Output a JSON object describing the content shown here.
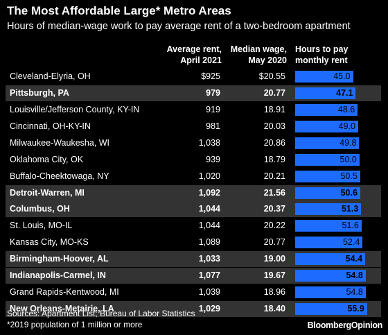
{
  "title": "The Most Affordable Large* Metro Areas",
  "subtitle": "Hours of median-wage work to pay average rent of a two-bedroom apartment",
  "columns": {
    "rent_l1": "Average rent,",
    "rent_l2": "April 2021",
    "wage_l1": "Median wage,",
    "wage_l2": "May 2020",
    "hours_l1": "Hours to pay",
    "hours_l2": "monthly rent"
  },
  "sources": "Sources: Apartment List; Bureau of Labor Statistics",
  "note": "*2019 population of 1 million or more",
  "logo": "BloombergOpinion",
  "colors": {
    "bar": "#1d6cff",
    "highlight_row": "#333333",
    "background": "#000000"
  },
  "chart_data": {
    "type": "bar",
    "orientation": "horizontal",
    "xlim": [
      0,
      56
    ],
    "categories": [
      "Cleveland-Elyria, OH",
      "Pittsburgh, PA",
      "Louisville/Jefferson County, KY-IN",
      "Cincinnati, OH-KY-IN",
      "Milwaukee-Waukesha, WI",
      "Oklahoma City, OK",
      "Buffalo-Cheektowaga, NY",
      "Detroit-Warren, MI",
      "Columbus, OH",
      "St. Louis, MO-IL",
      "Kansas City, MO-KS",
      "Birmingham-Hoover, AL",
      "Indianapolis-Carmel, IN",
      "Grand Rapids-Kentwood, MI",
      "New Orleans-Metairie, LA"
    ],
    "highlighted": [
      false,
      true,
      false,
      false,
      false,
      false,
      false,
      true,
      true,
      false,
      false,
      true,
      true,
      false,
      true
    ],
    "rent": [
      "$925",
      "979",
      "919",
      "981",
      "1,038",
      "939",
      "1,020",
      "1,092",
      "1,044",
      "1,044",
      "1,089",
      "1,033",
      "1,077",
      "1,039",
      "1,029"
    ],
    "wage": [
      "$20.55",
      "20.77",
      "18.91",
      "20.03",
      "20.86",
      "18.79",
      "20.21",
      "21.56",
      "20.37",
      "20.22",
      "20.77",
      "19.00",
      "19.67",
      "18.96",
      "18.40"
    ],
    "hours_labels": [
      "45.0",
      "47.1",
      "48.6",
      "49.0",
      "49.8",
      "50.0",
      "50.5",
      "50.6",
      "51.3",
      "51.6",
      "52.4",
      "54.4",
      "54.8",
      "54.8",
      "55.9"
    ],
    "values": [
      45.0,
      47.1,
      48.6,
      49.0,
      49.8,
      50.0,
      50.5,
      50.6,
      51.3,
      51.6,
      52.4,
      54.4,
      54.8,
      54.8,
      55.9
    ]
  }
}
